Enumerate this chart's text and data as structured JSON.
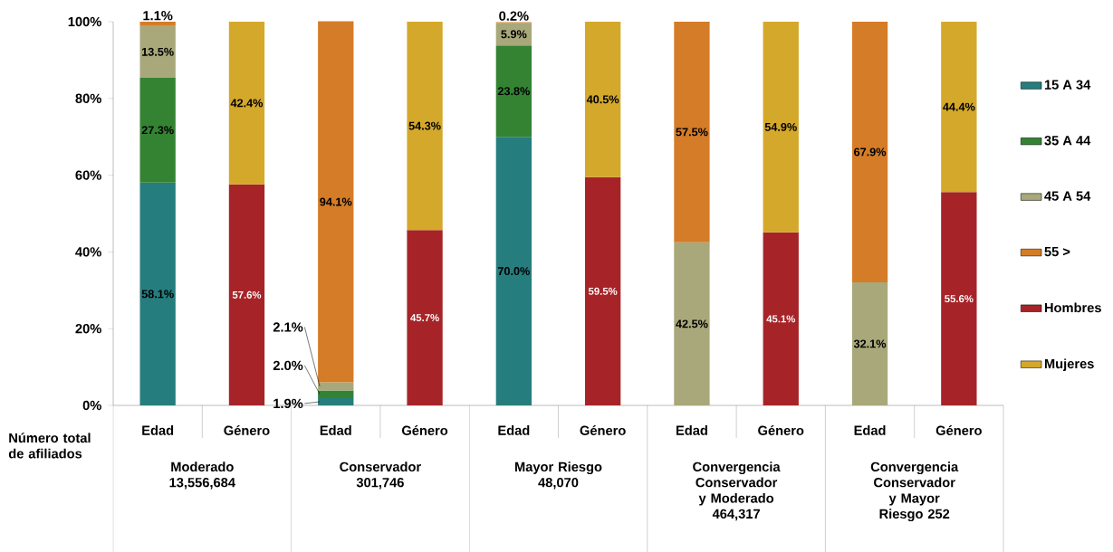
{
  "chart_data": {
    "type": "bar",
    "stacked": true,
    "categories": [
      "Edad",
      "Género",
      "Edad",
      "Género",
      "Edad",
      "Género",
      "Edad",
      "Género",
      "Edad",
      "Género"
    ],
    "series": [
      {
        "name": "15 A 34",
        "color": "#267d7e",
        "values": [
          58.1,
          null,
          1.9,
          null,
          70.0,
          null,
          null,
          null,
          null,
          null
        ],
        "value_labels": [
          "58.1%",
          null,
          "1.9%",
          null,
          "70.0%",
          null,
          null,
          null,
          null,
          null
        ]
      },
      {
        "name": "35 A 44",
        "color": "#348333",
        "values": [
          27.3,
          null,
          2.0,
          null,
          23.8,
          null,
          null,
          null,
          null,
          null
        ],
        "value_labels": [
          "27.3%",
          null,
          "2.0%",
          null,
          "23.8%",
          null,
          null,
          null,
          null,
          null
        ]
      },
      {
        "name": "45 A 54",
        "color": "#a8a87a",
        "values": [
          13.5,
          null,
          2.1,
          null,
          5.9,
          null,
          42.5,
          null,
          32.1,
          null
        ],
        "value_labels": [
          "13.5%",
          null,
          "2.1%",
          null,
          "5.9%",
          null,
          "42.5%",
          null,
          "32.1%",
          null
        ]
      },
      {
        "name": "55  >",
        "color": "#d57c28",
        "values": [
          1.1,
          null,
          94.1,
          null,
          0.2,
          null,
          57.5,
          null,
          67.9,
          null
        ],
        "value_labels": [
          "1.1%",
          null,
          "94.1%",
          null,
          "0.2%",
          null,
          "57.5%",
          null,
          "67.9%",
          null
        ]
      },
      {
        "name": "Hombres",
        "color": "#a62428",
        "values": [
          null,
          57.6,
          null,
          45.7,
          null,
          59.5,
          null,
          45.1,
          null,
          55.6
        ],
        "value_labels": [
          null,
          "57.6%",
          null,
          "45.7%",
          null,
          "59.5%",
          null,
          "45.1%",
          null,
          "55.6%"
        ]
      },
      {
        "name": "Mujeres",
        "color": "#d4a82a",
        "values": [
          null,
          42.4,
          null,
          54.3,
          null,
          40.5,
          null,
          54.9,
          null,
          44.4
        ],
        "value_labels": [
          null,
          "42.4%",
          null,
          "54.3%",
          null,
          "40.5%",
          null,
          "54.9%",
          null,
          "44.4%"
        ]
      }
    ],
    "ylim": [
      0,
      100
    ],
    "yticks": [
      {
        "value": 0,
        "label": "0%"
      },
      {
        "value": 20,
        "label": "20%"
      },
      {
        "value": 40,
        "label": "40%"
      },
      {
        "value": 60,
        "label": "60%"
      },
      {
        "value": 80,
        "label": "80%"
      },
      {
        "value": 100,
        "label": "100%"
      }
    ],
    "legend": "right",
    "annotations": [
      "Número total de afiliados",
      "Moderado 13,556,684",
      "Conservador 301,746",
      "Mayor Riesgo 48,070",
      "Convergencia Conservador y Moderado 464,317",
      "Convergencia Conservador y Mayor Riesgo 252"
    ]
  }
}
